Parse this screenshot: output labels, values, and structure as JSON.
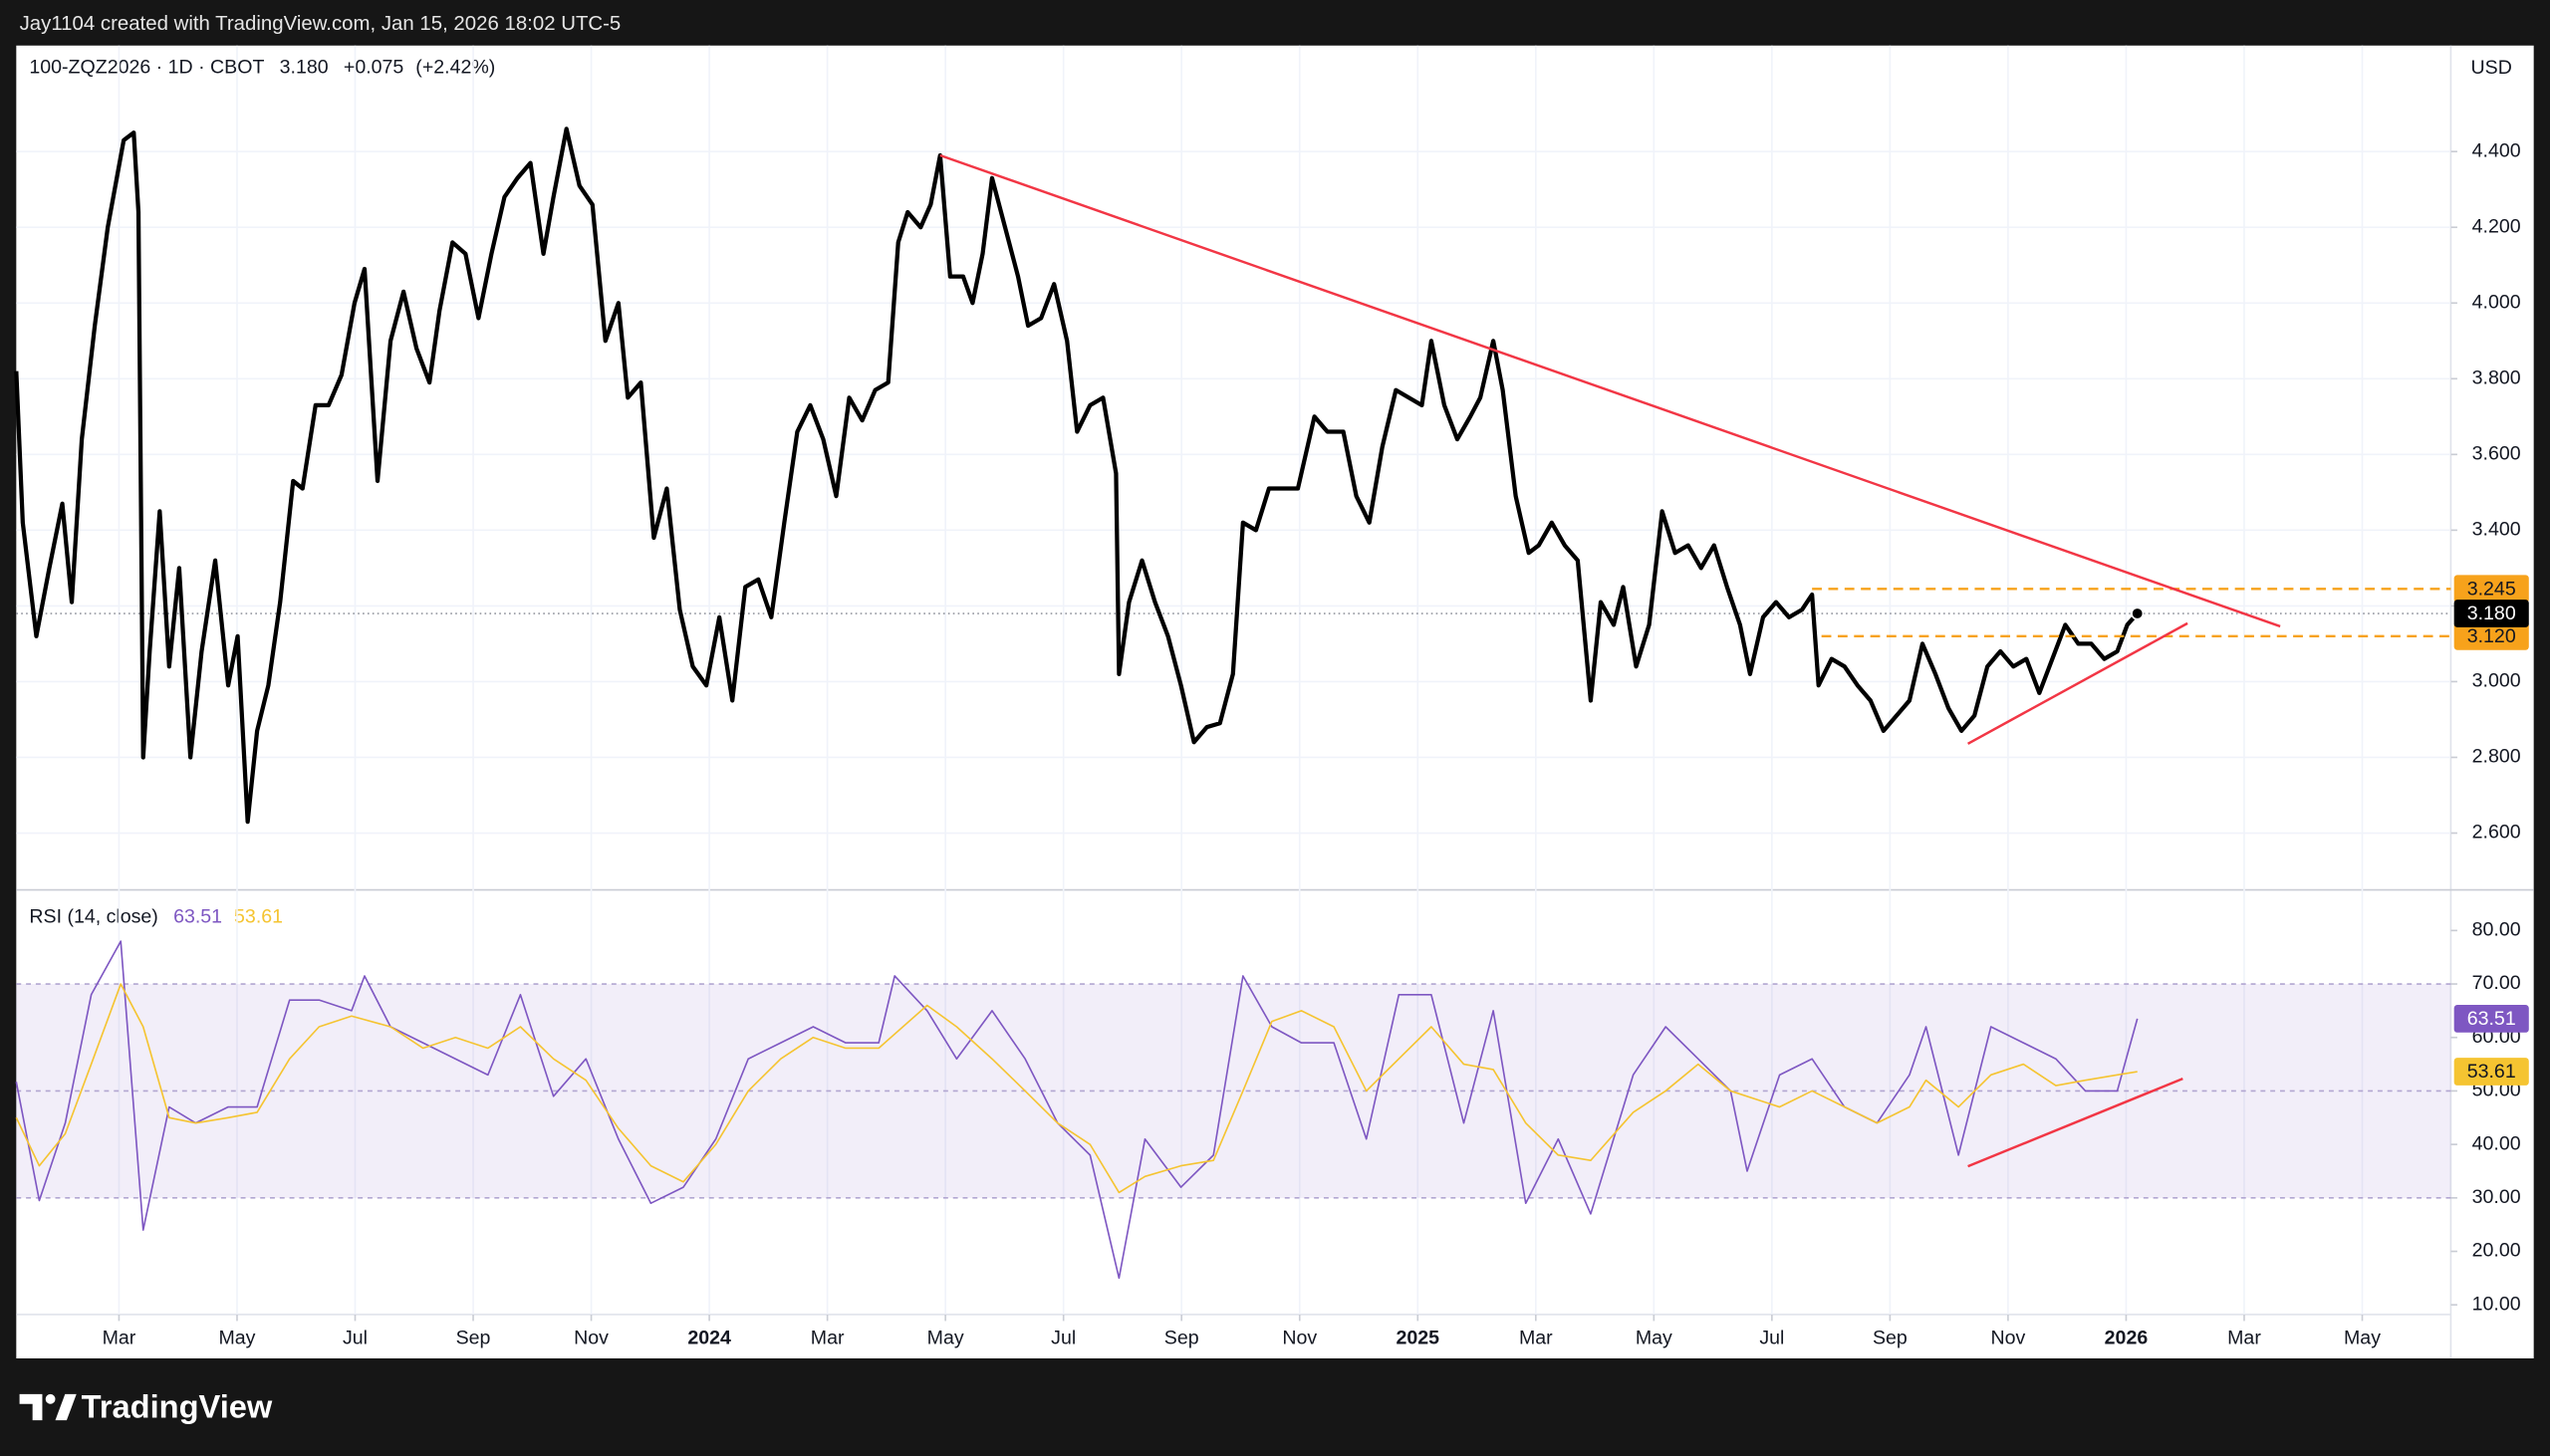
{
  "header": {
    "attribution": "Jay1104 created with TradingView.com, Jan 15, 2026 18:02 UTC-5"
  },
  "footer": {
    "logo": "TradingView"
  },
  "chart_data": [
    {
      "type": "line",
      "title": "100-ZQZ2026 · 1D · CBOT",
      "last": {
        "value": 3.18,
        "label": "3.180"
      },
      "change": {
        "value": 0.075,
        "label": "+0.075"
      },
      "change_pct": {
        "value": 2.42,
        "label": "(+2.42%)"
      },
      "currency": "USD",
      "xlim": [
        0.26,
        41.5
      ],
      "ylim": [
        2.45,
        4.68
      ],
      "yticks": [
        {
          "value": 2.6,
          "label": "2.600"
        },
        {
          "value": 2.8,
          "label": "2.800"
        },
        {
          "value": 3.0,
          "label": "3.000"
        },
        {
          "value": 3.2,
          "label": "3.200"
        },
        {
          "value": 3.4,
          "label": "3.400"
        },
        {
          "value": 3.6,
          "label": "3.600"
        },
        {
          "value": 3.8,
          "label": "3.800"
        },
        {
          "value": 4.0,
          "label": "4.000"
        },
        {
          "value": 4.2,
          "label": "4.200"
        },
        {
          "value": 4.4,
          "label": "4.400"
        }
      ],
      "grid": true,
      "series": [
        {
          "color": "#000000",
          "x": [
            0.26,
            0.37,
            0.6,
            0.82,
            1.04,
            1.2,
            1.37,
            1.59,
            1.81,
            2.08,
            2.25,
            2.33,
            2.41,
            2.52,
            2.69,
            2.85,
            3.02,
            3.21,
            3.4,
            3.63,
            3.85,
            4.01,
            4.18,
            4.34,
            4.53,
            4.73,
            4.95,
            5.11,
            5.33,
            5.55,
            5.77,
            5.99,
            6.16,
            6.38,
            6.6,
            6.82,
            7.04,
            7.26,
            7.43,
            7.65,
            7.87,
            8.09,
            8.31,
            8.53,
            8.75,
            8.97,
            9.19,
            9.36,
            9.58,
            9.8,
            10.02,
            10.24,
            10.46,
            10.62,
            10.84,
            11.06,
            11.28,
            11.5,
            11.72,
            11.95,
            12.17,
            12.39,
            12.61,
            12.83,
            13.05,
            13.27,
            13.49,
            13.71,
            13.93,
            14.15,
            14.37,
            14.59,
            14.81,
            15.03,
            15.2,
            15.36,
            15.58,
            15.75,
            15.91,
            16.08,
            16.3,
            16.46,
            16.63,
            16.79,
            17.01,
            17.23,
            17.4,
            17.62,
            17.84,
            18.06,
            18.23,
            18.45,
            18.67,
            18.89,
            18.94,
            19.11,
            19.33,
            19.55,
            19.77,
            19.99,
            20.21,
            20.43,
            20.65,
            20.87,
            21.04,
            21.26,
            21.48,
            21.7,
            21.97,
            22.25,
            22.47,
            22.74,
            22.96,
            23.18,
            23.4,
            23.63,
            23.85,
            24.07,
            24.23,
            24.45,
            24.67,
            24.89,
            25.06,
            25.28,
            25.44,
            25.66,
            25.88,
            26.05,
            26.27,
            26.49,
            26.71,
            26.93,
            27.1,
            27.32,
            27.48,
            27.7,
            27.92,
            28.14,
            28.36,
            28.58,
            28.8,
            29.02,
            29.24,
            29.46,
            29.63,
            29.85,
            30.07,
            30.29,
            30.51,
            30.68,
            30.79,
            31.01,
            31.23,
            31.45,
            31.67,
            31.89,
            32.11,
            32.33,
            32.55,
            32.77,
            32.99,
            33.21,
            33.43,
            33.65,
            33.87,
            34.09,
            34.31,
            34.53,
            34.75,
            34.97,
            35.19,
            35.41,
            35.63,
            35.85,
            36.02,
            36.19
          ],
          "values": [
            3.82,
            3.42,
            3.12,
            3.3,
            3.47,
            3.21,
            3.64,
            3.94,
            4.2,
            4.43,
            4.45,
            4.24,
            2.8,
            3.08,
            3.45,
            3.04,
            3.3,
            2.8,
            3.08,
            3.32,
            2.99,
            3.12,
            2.63,
            2.87,
            2.99,
            3.21,
            3.53,
            3.51,
            3.73,
            3.73,
            3.81,
            4.0,
            4.09,
            3.53,
            3.9,
            4.03,
            3.88,
            3.79,
            3.98,
            4.16,
            4.13,
            3.96,
            4.13,
            4.28,
            4.33,
            4.37,
            4.13,
            4.28,
            4.46,
            4.31,
            4.26,
            3.9,
            4.0,
            3.75,
            3.79,
            3.38,
            3.51,
            3.19,
            3.04,
            2.99,
            3.17,
            2.95,
            3.25,
            3.27,
            3.17,
            3.42,
            3.66,
            3.73,
            3.64,
            3.49,
            3.75,
            3.69,
            3.77,
            3.79,
            4.16,
            4.24,
            4.2,
            4.26,
            4.39,
            4.07,
            4.07,
            4.0,
            4.13,
            4.33,
            4.2,
            4.07,
            3.94,
            3.96,
            4.05,
            3.9,
            3.66,
            3.73,
            3.75,
            3.55,
            3.02,
            3.21,
            3.32,
            3.21,
            3.12,
            2.99,
            2.84,
            2.88,
            2.89,
            3.02,
            3.42,
            3.4,
            3.51,
            3.51,
            3.51,
            3.7,
            3.66,
            3.66,
            3.49,
            3.42,
            3.62,
            3.77,
            3.75,
            3.73,
            3.9,
            3.73,
            3.64,
            3.7,
            3.75,
            3.9,
            3.77,
            3.49,
            3.34,
            3.36,
            3.42,
            3.36,
            3.32,
            2.95,
            3.21,
            3.15,
            3.25,
            3.04,
            3.15,
            3.45,
            3.34,
            3.36,
            3.3,
            3.36,
            3.25,
            3.15,
            3.02,
            3.17,
            3.21,
            3.17,
            3.19,
            3.23,
            2.99,
            3.06,
            3.04,
            2.99,
            2.95,
            2.87,
            2.91,
            2.95,
            3.1,
            3.02,
            2.93,
            2.87,
            2.91,
            3.04,
            3.08,
            3.04,
            3.06,
            2.97,
            3.06,
            3.15,
            3.1,
            3.1,
            3.06,
            3.08,
            3.15,
            3.18
          ]
        }
      ],
      "levels": [
        {
          "value": 3.245,
          "label": "3.245",
          "from": 30.68,
          "color": "#f7a21b"
        },
        {
          "value": 3.12,
          "label": "3.120",
          "from": 30.84,
          "color": "#f7a21b"
        }
      ],
      "trendlines": [
        {
          "color": "#f23645",
          "x": [
            15.91,
            38.61
          ],
          "values": [
            4.39,
            3.146
          ]
        },
        {
          "color": "#f23645",
          "x": [
            33.32,
            37.04
          ],
          "values": [
            2.836,
            3.154
          ]
        }
      ]
    },
    {
      "type": "line",
      "title": "RSI (14, close)",
      "xlim": [
        0.26,
        41.5
      ],
      "ylim": [
        8.2,
        87.6
      ],
      "yticks": [
        {
          "value": 10,
          "label": "10.00"
        },
        {
          "value": 20,
          "label": "20.00"
        },
        {
          "value": 30,
          "label": "30.00"
        },
        {
          "value": 40,
          "label": "40.00"
        },
        {
          "value": 50,
          "label": "50.00"
        },
        {
          "value": 60,
          "label": "60.00"
        },
        {
          "value": 70,
          "label": "70.00"
        },
        {
          "value": 80,
          "label": "80.00"
        }
      ],
      "xticks": [
        {
          "value": 2,
          "label": "Mar"
        },
        {
          "value": 4,
          "label": "May"
        },
        {
          "value": 6,
          "label": "Jul"
        },
        {
          "value": 8,
          "label": "Sep"
        },
        {
          "value": 10,
          "label": "Nov"
        },
        {
          "value": 12,
          "label": "2024"
        },
        {
          "value": 14,
          "label": "Mar"
        },
        {
          "value": 16,
          "label": "May"
        },
        {
          "value": 18,
          "label": "Jul"
        },
        {
          "value": 20,
          "label": "Sep"
        },
        {
          "value": 22,
          "label": "Nov"
        },
        {
          "value": 24,
          "label": "2025"
        },
        {
          "value": 26,
          "label": "Mar"
        },
        {
          "value": 28,
          "label": "May"
        },
        {
          "value": 30,
          "label": "Jul"
        },
        {
          "value": 32,
          "label": "Sep"
        },
        {
          "value": 34,
          "label": "Nov"
        },
        {
          "value": 36,
          "label": "2026"
        },
        {
          "value": 38,
          "label": "Mar"
        },
        {
          "value": 40,
          "label": "May"
        }
      ],
      "levels": [
        70,
        50,
        30
      ],
      "series": [
        {
          "color": "#7e57c2",
          "x": [
            0.26,
            0.65,
            1.09,
            1.53,
            2.03,
            2.41,
            2.85,
            3.3,
            3.85,
            4.34,
            4.89,
            5.39,
            5.94,
            6.16,
            6.6,
            7.15,
            7.7,
            8.25,
            8.8,
            9.36,
            9.91,
            10.46,
            11.01,
            11.56,
            12.11,
            12.66,
            13.21,
            13.76,
            14.31,
            14.87,
            15.14,
            15.69,
            16.19,
            16.79,
            17.35,
            17.9,
            18.45,
            18.94,
            19.38,
            19.99,
            20.54,
            21.04,
            21.53,
            22.03,
            22.58,
            23.13,
            23.68,
            24.23,
            24.78,
            25.28,
            25.83,
            26.38,
            26.93,
            27.65,
            28.2,
            28.75,
            29.3,
            29.58,
            30.13,
            30.68,
            31.23,
            31.78,
            32.33,
            32.61,
            33.16,
            33.71,
            34.26,
            34.81,
            35.31,
            35.85,
            36.19
          ],
          "values": [
            51.7,
            29.5,
            44,
            68,
            78,
            24,
            47,
            44,
            47,
            47,
            67,
            67,
            65,
            71.5,
            62,
            59,
            56,
            53,
            68,
            49,
            56,
            41,
            29,
            32,
            41,
            56,
            59,
            62,
            59,
            59,
            71.5,
            65,
            56,
            65,
            56,
            44,
            38,
            15,
            41,
            32,
            38,
            71.5,
            62,
            59,
            59,
            41,
            68,
            68,
            44,
            65,
            29,
            41,
            27,
            53,
            62,
            56,
            50,
            35,
            53,
            56,
            47,
            44,
            53,
            62,
            38,
            62,
            59,
            56,
            50,
            50,
            63.51
          ]
        },
        {
          "color": "#f5c431",
          "x": [
            0.26,
            0.65,
            1.09,
            1.53,
            2.03,
            2.41,
            2.85,
            3.3,
            3.85,
            4.34,
            4.89,
            5.39,
            5.94,
            6.6,
            7.15,
            7.7,
            8.25,
            8.8,
            9.36,
            9.91,
            10.46,
            11.01,
            11.56,
            12.11,
            12.66,
            13.21,
            13.76,
            14.31,
            14.87,
            15.69,
            16.19,
            16.79,
            17.35,
            17.9,
            18.45,
            18.94,
            19.38,
            19.99,
            20.54,
            21.04,
            21.53,
            22.03,
            22.58,
            23.13,
            23.68,
            24.23,
            24.78,
            25.28,
            25.83,
            26.38,
            26.93,
            27.65,
            28.2,
            28.75,
            29.3,
            30.13,
            30.68,
            31.23,
            31.78,
            32.33,
            32.61,
            33.16,
            33.71,
            34.26,
            34.81,
            35.31,
            35.85,
            36.19
          ],
          "values": [
            45,
            36,
            42,
            55,
            70,
            62,
            45,
            44,
            45,
            46,
            56,
            62,
            64,
            62,
            58,
            60,
            58,
            62,
            56,
            52,
            43,
            36,
            33,
            40,
            50,
            56,
            60,
            58,
            58,
            66,
            62,
            56,
            50,
            44,
            40,
            31,
            34,
            36,
            37,
            50,
            63,
            65,
            62,
            50,
            56,
            62,
            55,
            54,
            44,
            38,
            37,
            46,
            50,
            55,
            50,
            47,
            50,
            47,
            44,
            47,
            52,
            47,
            53,
            55,
            51,
            52,
            53,
            53.61
          ]
        }
      ],
      "trendlines": [
        {
          "color": "#f23645",
          "x": [
            33.32,
            36.96
          ],
          "values": [
            35.9,
            52.3
          ]
        }
      ]
    }
  ]
}
